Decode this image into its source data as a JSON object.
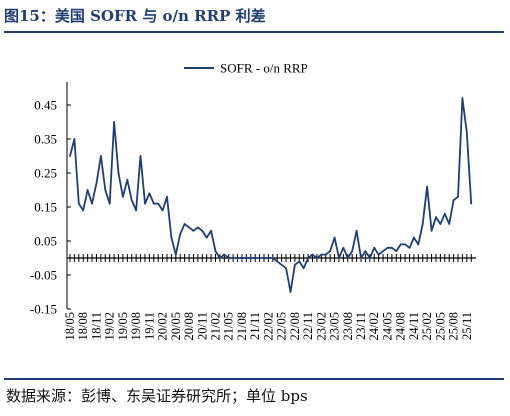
{
  "figure": {
    "title": "图15：美国 SOFR 与 o/n RRP 利差",
    "source": "数据来源：彭博、东吴证券研究所；单位 bps"
  },
  "colors": {
    "series": "#1f3f74",
    "title": "#1f3f74",
    "axis": "#000000"
  },
  "chart_data": {
    "type": "line",
    "title": "",
    "xlabel": "",
    "ylabel": "",
    "ylim": [
      -0.15,
      0.5
    ],
    "yticks": [
      0.45,
      0.35,
      0.25,
      0.15,
      0.05,
      -0.05,
      -0.15
    ],
    "ytick_labels": [
      "0.45",
      "0.35",
      "0.25",
      "0.15",
      "0.05",
      "-0.05",
      "-0.15"
    ],
    "xticks": [
      "18/05",
      "18/08",
      "18/11",
      "19/02",
      "19/05",
      "19/08",
      "19/11",
      "20/02",
      "20/05",
      "20/08",
      "20/11",
      "21/02",
      "21/05",
      "21/08",
      "21/11",
      "22/02",
      "22/05",
      "22/08",
      "22/11",
      "23/02",
      "23/05",
      "23/08",
      "23/11",
      "24/02",
      "24/05",
      "24/08",
      "24/11",
      "25/02",
      "25/05",
      "25/08",
      "25/11"
    ],
    "legend": {
      "position": "top-center",
      "entries": [
        "SOFR - o/n RRP"
      ]
    },
    "grid": false,
    "series": [
      {
        "name": "SOFR - o/n RRP",
        "x": [
          "2018-05",
          "2018-06",
          "2018-07",
          "2018-08",
          "2018-09",
          "2018-10",
          "2018-11",
          "2018-12",
          "2019-01",
          "2019-02",
          "2019-03",
          "2019-04",
          "2019-05",
          "2019-06",
          "2019-07",
          "2019-08",
          "2019-09",
          "2019-10",
          "2019-11",
          "2019-12",
          "2020-01",
          "2020-02",
          "2020-03",
          "2020-04",
          "2020-05",
          "2020-06",
          "2020-07",
          "2020-08",
          "2020-09",
          "2020-10",
          "2020-11",
          "2020-12",
          "2021-01",
          "2021-02",
          "2021-03",
          "2021-04",
          "2021-05",
          "2021-06",
          "2021-07",
          "2021-08",
          "2021-09",
          "2021-10",
          "2021-11",
          "2021-12",
          "2022-01",
          "2022-02",
          "2022-03",
          "2022-04",
          "2022-05",
          "2022-06",
          "2022-07",
          "2022-08",
          "2022-09",
          "2022-10",
          "2022-11",
          "2022-12",
          "2023-01",
          "2023-02",
          "2023-03",
          "2023-04",
          "2023-05",
          "2023-06",
          "2023-07",
          "2023-08",
          "2023-09",
          "2023-10",
          "2023-11",
          "2023-12",
          "2024-01",
          "2024-02",
          "2024-03",
          "2024-04",
          "2024-05",
          "2024-06",
          "2024-07",
          "2024-08",
          "2024-09",
          "2024-10",
          "2024-11",
          "2024-12",
          "2025-01",
          "2025-02",
          "2025-03",
          "2025-04",
          "2025-05",
          "2025-06",
          "2025-07",
          "2025-08",
          "2025-09",
          "2025-10",
          "2025-11",
          "2025-12"
        ],
        "values": [
          0.3,
          0.35,
          0.16,
          0.14,
          0.2,
          0.16,
          0.22,
          0.3,
          0.2,
          0.16,
          0.4,
          0.25,
          0.18,
          0.23,
          0.17,
          0.14,
          0.3,
          0.16,
          0.19,
          0.16,
          0.16,
          0.14,
          0.18,
          0.06,
          0.01,
          0.07,
          0.1,
          0.09,
          0.08,
          0.09,
          0.08,
          0.06,
          0.08,
          0.02,
          0.0,
          0.01,
          0.0,
          0.0,
          0.0,
          0.0,
          0.0,
          0.0,
          0.0,
          0.0,
          0.0,
          0.0,
          0.0,
          -0.01,
          -0.02,
          -0.03,
          -0.1,
          -0.02,
          -0.01,
          -0.03,
          0.0,
          0.01,
          0.0,
          0.01,
          0.01,
          0.02,
          0.06,
          0.0,
          0.03,
          0.0,
          0.02,
          0.08,
          0.0,
          0.02,
          0.0,
          0.03,
          0.01,
          0.02,
          0.03,
          0.03,
          0.02,
          0.04,
          0.04,
          0.03,
          0.06,
          0.04,
          0.1,
          0.21,
          0.08,
          0.12,
          0.1,
          0.13,
          0.1,
          0.17,
          0.18,
          0.47,
          0.37,
          0.16
        ]
      }
    ]
  }
}
